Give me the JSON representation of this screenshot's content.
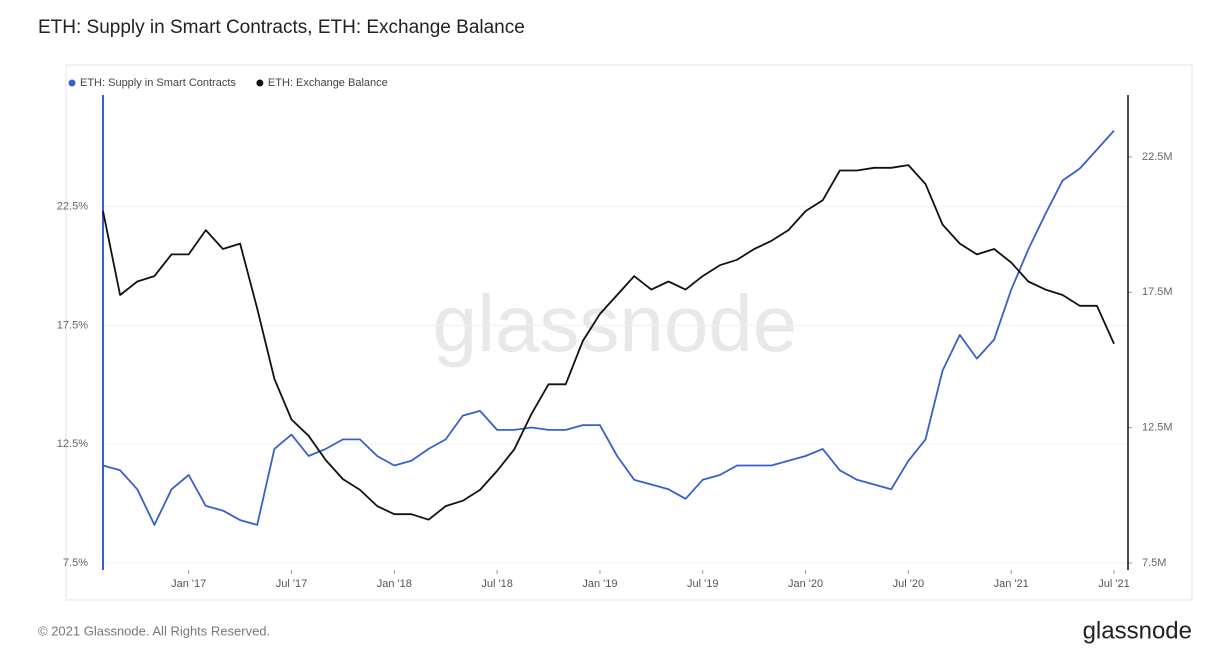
{
  "chart_data": {
    "type": "line",
    "title": "ETH: Supply in Smart Contracts, ETH: Exchange Balance",
    "watermark": "glassnode",
    "footer": "© 2021 Glassnode. All Rights Reserved.",
    "brand": "glassnode",
    "x": [
      "2016-08",
      "2016-09",
      "2016-10",
      "2016-11",
      "2016-12",
      "2017-01",
      "2017-02",
      "2017-03",
      "2017-04",
      "2017-05",
      "2017-06",
      "2017-07",
      "2017-08",
      "2017-09",
      "2017-10",
      "2017-11",
      "2017-12",
      "2018-01",
      "2018-02",
      "2018-03",
      "2018-04",
      "2018-05",
      "2018-06",
      "2018-07",
      "2018-08",
      "2018-09",
      "2018-10",
      "2018-11",
      "2018-12",
      "2019-01",
      "2019-02",
      "2019-03",
      "2019-04",
      "2019-05",
      "2019-06",
      "2019-07",
      "2019-08",
      "2019-09",
      "2019-10",
      "2019-11",
      "2019-12",
      "2020-01",
      "2020-02",
      "2020-03",
      "2020-04",
      "2020-05",
      "2020-06",
      "2020-07",
      "2020-08",
      "2020-09",
      "2020-10",
      "2020-11",
      "2020-12",
      "2021-01",
      "2021-02",
      "2021-03",
      "2021-04",
      "2021-05",
      "2021-06",
      "2021-07"
    ],
    "xlim": [
      "2016-08",
      "2021-07"
    ],
    "xticks": [
      {
        "value": "2017-01",
        "label": "Jan '17"
      },
      {
        "value": "2017-07",
        "label": "Jul '17"
      },
      {
        "value": "2018-01",
        "label": "Jan '18"
      },
      {
        "value": "2018-07",
        "label": "Jul '18"
      },
      {
        "value": "2019-01",
        "label": "Jan '19"
      },
      {
        "value": "2019-07",
        "label": "Jul '19"
      },
      {
        "value": "2020-01",
        "label": "Jan '20"
      },
      {
        "value": "2020-07",
        "label": "Jul '20"
      },
      {
        "value": "2021-01",
        "label": "Jan '21"
      },
      {
        "value": "2021-07",
        "label": "Jul '21"
      }
    ],
    "ylim": [
      7.2,
      27.2
    ],
    "yticks": [
      {
        "value": 7.5,
        "label": "7.5%"
      },
      {
        "value": 12.5,
        "label": "12.5%"
      },
      {
        "value": 17.5,
        "label": "17.5%"
      },
      {
        "value": 22.5,
        "label": "22.5%"
      }
    ],
    "y2lim": [
      7240000,
      24790000
    ],
    "y2ticks": [
      {
        "value": 7500000,
        "label": "7.5M"
      },
      {
        "value": 12500000,
        "label": "12.5M"
      },
      {
        "value": 17500000,
        "label": "17.5M"
      },
      {
        "value": 22500000,
        "label": "22.5M"
      }
    ],
    "grid": true,
    "legend": "top-left",
    "series": [
      {
        "name": "ETH: Supply in Smart Contracts",
        "color": "#3a5fcd",
        "axis": "y",
        "values": [
          11.6,
          11.4,
          10.6,
          9.1,
          10.6,
          11.2,
          9.9,
          9.7,
          9.3,
          9.1,
          12.3,
          12.9,
          12.0,
          12.3,
          12.7,
          12.7,
          12.0,
          11.6,
          11.8,
          12.3,
          12.7,
          13.7,
          13.9,
          13.1,
          13.1,
          13.2,
          13.1,
          13.1,
          13.3,
          13.3,
          12.0,
          11.0,
          10.8,
          10.6,
          10.2,
          11.0,
          11.2,
          11.6,
          11.6,
          11.6,
          11.8,
          12.0,
          12.3,
          11.4,
          11.0,
          10.8,
          10.6,
          11.8,
          12.7,
          15.6,
          17.1,
          16.1,
          16.9,
          19.0,
          20.7,
          22.2,
          23.6,
          24.1,
          24.9,
          25.7
        ]
      },
      {
        "name": "ETH: Exchange Balance",
        "color": "#111111",
        "axis": "y2",
        "values": [
          20500000,
          17400000,
          17900000,
          18100000,
          18900000,
          18900000,
          19800000,
          19100000,
          19300000,
          16900000,
          14300000,
          12800000,
          12200000,
          11300000,
          10600000,
          10200000,
          9600000,
          9300000,
          9300000,
          9100000,
          9600000,
          9800000,
          10200000,
          10900000,
          11700000,
          13000000,
          14100000,
          14100000,
          15700000,
          16700000,
          17400000,
          18100000,
          17600000,
          17900000,
          17600000,
          18100000,
          18500000,
          18700000,
          19100000,
          19400000,
          19800000,
          20500000,
          20900000,
          22000000,
          22000000,
          22100000,
          22100000,
          22200000,
          21500000,
          20000000,
          19300000,
          18900000,
          19100000,
          18600000,
          17900000,
          17600000,
          17400000,
          17000000,
          17000000,
          15600000
        ]
      }
    ]
  }
}
